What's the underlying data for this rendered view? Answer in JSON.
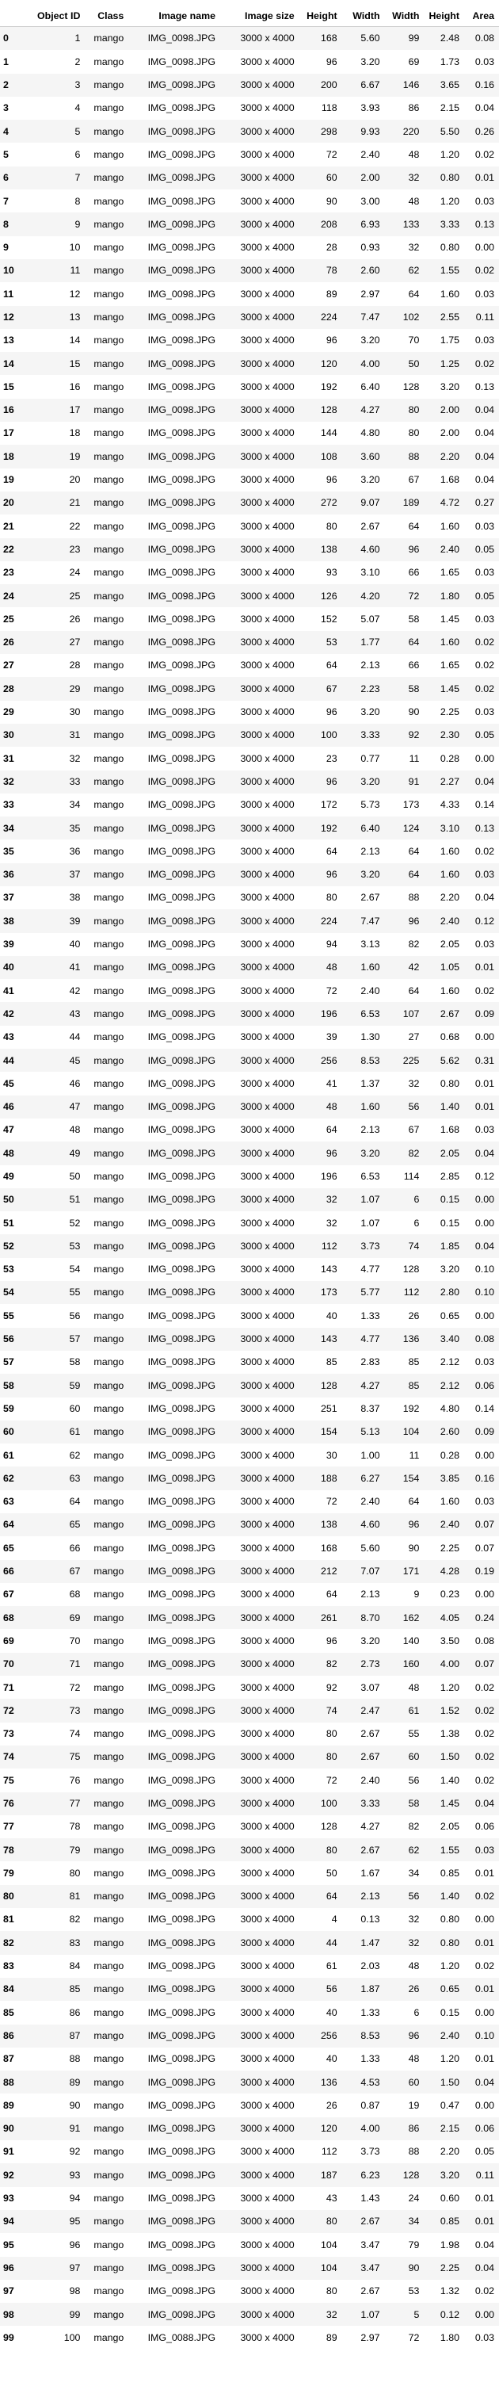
{
  "table": {
    "columns": [
      "",
      "Object ID",
      "Class",
      "Image name",
      "Image size",
      "Height",
      "Width",
      "Width",
      "Height",
      "Area"
    ],
    "rows": [
      [
        "0",
        "1",
        "mango",
        "IMG_0098.JPG",
        "3000 x 4000",
        "168",
        "5.60",
        "99",
        "2.48",
        "0.08"
      ],
      [
        "1",
        "2",
        "mango",
        "IMG_0098.JPG",
        "3000 x 4000",
        "96",
        "3.20",
        "69",
        "1.73",
        "0.03"
      ],
      [
        "2",
        "3",
        "mango",
        "IMG_0098.JPG",
        "3000 x 4000",
        "200",
        "6.67",
        "146",
        "3.65",
        "0.16"
      ],
      [
        "3",
        "4",
        "mango",
        "IMG_0098.JPG",
        "3000 x 4000",
        "118",
        "3.93",
        "86",
        "2.15",
        "0.04"
      ],
      [
        "4",
        "5",
        "mango",
        "IMG_0098.JPG",
        "3000 x 4000",
        "298",
        "9.93",
        "220",
        "5.50",
        "0.26"
      ],
      [
        "5",
        "6",
        "mango",
        "IMG_0098.JPG",
        "3000 x 4000",
        "72",
        "2.40",
        "48",
        "1.20",
        "0.02"
      ],
      [
        "6",
        "7",
        "mango",
        "IMG_0098.JPG",
        "3000 x 4000",
        "60",
        "2.00",
        "32",
        "0.80",
        "0.01"
      ],
      [
        "7",
        "8",
        "mango",
        "IMG_0098.JPG",
        "3000 x 4000",
        "90",
        "3.00",
        "48",
        "1.20",
        "0.03"
      ],
      [
        "8",
        "9",
        "mango",
        "IMG_0098.JPG",
        "3000 x 4000",
        "208",
        "6.93",
        "133",
        "3.33",
        "0.13"
      ],
      [
        "9",
        "10",
        "mango",
        "IMG_0098.JPG",
        "3000 x 4000",
        "28",
        "0.93",
        "32",
        "0.80",
        "0.00"
      ],
      [
        "10",
        "11",
        "mango",
        "IMG_0098.JPG",
        "3000 x 4000",
        "78",
        "2.60",
        "62",
        "1.55",
        "0.02"
      ],
      [
        "11",
        "12",
        "mango",
        "IMG_0098.JPG",
        "3000 x 4000",
        "89",
        "2.97",
        "64",
        "1.60",
        "0.03"
      ],
      [
        "12",
        "13",
        "mango",
        "IMG_0098.JPG",
        "3000 x 4000",
        "224",
        "7.47",
        "102",
        "2.55",
        "0.11"
      ],
      [
        "13",
        "14",
        "mango",
        "IMG_0098.JPG",
        "3000 x 4000",
        "96",
        "3.20",
        "70",
        "1.75",
        "0.03"
      ],
      [
        "14",
        "15",
        "mango",
        "IMG_0098.JPG",
        "3000 x 4000",
        "120",
        "4.00",
        "50",
        "1.25",
        "0.02"
      ],
      [
        "15",
        "16",
        "mango",
        "IMG_0098.JPG",
        "3000 x 4000",
        "192",
        "6.40",
        "128",
        "3.20",
        "0.13"
      ],
      [
        "16",
        "17",
        "mango",
        "IMG_0098.JPG",
        "3000 x 4000",
        "128",
        "4.27",
        "80",
        "2.00",
        "0.04"
      ],
      [
        "17",
        "18",
        "mango",
        "IMG_0098.JPG",
        "3000 x 4000",
        "144",
        "4.80",
        "80",
        "2.00",
        "0.04"
      ],
      [
        "18",
        "19",
        "mango",
        "IMG_0098.JPG",
        "3000 x 4000",
        "108",
        "3.60",
        "88",
        "2.20",
        "0.04"
      ],
      [
        "19",
        "20",
        "mango",
        "IMG_0098.JPG",
        "3000 x 4000",
        "96",
        "3.20",
        "67",
        "1.68",
        "0.04"
      ],
      [
        "20",
        "21",
        "mango",
        "IMG_0098.JPG",
        "3000 x 4000",
        "272",
        "9.07",
        "189",
        "4.72",
        "0.27"
      ],
      [
        "21",
        "22",
        "mango",
        "IMG_0098.JPG",
        "3000 x 4000",
        "80",
        "2.67",
        "64",
        "1.60",
        "0.03"
      ],
      [
        "22",
        "23",
        "mango",
        "IMG_0098.JPG",
        "3000 x 4000",
        "138",
        "4.60",
        "96",
        "2.40",
        "0.05"
      ],
      [
        "23",
        "24",
        "mango",
        "IMG_0098.JPG",
        "3000 x 4000",
        "93",
        "3.10",
        "66",
        "1.65",
        "0.03"
      ],
      [
        "24",
        "25",
        "mango",
        "IMG_0098.JPG",
        "3000 x 4000",
        "126",
        "4.20",
        "72",
        "1.80",
        "0.05"
      ],
      [
        "25",
        "26",
        "mango",
        "IMG_0098.JPG",
        "3000 x 4000",
        "152",
        "5.07",
        "58",
        "1.45",
        "0.03"
      ],
      [
        "26",
        "27",
        "mango",
        "IMG_0098.JPG",
        "3000 x 4000",
        "53",
        "1.77",
        "64",
        "1.60",
        "0.02"
      ],
      [
        "27",
        "28",
        "mango",
        "IMG_0098.JPG",
        "3000 x 4000",
        "64",
        "2.13",
        "66",
        "1.65",
        "0.02"
      ],
      [
        "28",
        "29",
        "mango",
        "IMG_0098.JPG",
        "3000 x 4000",
        "67",
        "2.23",
        "58",
        "1.45",
        "0.02"
      ],
      [
        "29",
        "30",
        "mango",
        "IMG_0098.JPG",
        "3000 x 4000",
        "96",
        "3.20",
        "90",
        "2.25",
        "0.03"
      ],
      [
        "30",
        "31",
        "mango",
        "IMG_0098.JPG",
        "3000 x 4000",
        "100",
        "3.33",
        "92",
        "2.30",
        "0.05"
      ],
      [
        "31",
        "32",
        "mango",
        "IMG_0098.JPG",
        "3000 x 4000",
        "23",
        "0.77",
        "11",
        "0.28",
        "0.00"
      ],
      [
        "32",
        "33",
        "mango",
        "IMG_0098.JPG",
        "3000 x 4000",
        "96",
        "3.20",
        "91",
        "2.27",
        "0.04"
      ],
      [
        "33",
        "34",
        "mango",
        "IMG_0098.JPG",
        "3000 x 4000",
        "172",
        "5.73",
        "173",
        "4.33",
        "0.14"
      ],
      [
        "34",
        "35",
        "mango",
        "IMG_0098.JPG",
        "3000 x 4000",
        "192",
        "6.40",
        "124",
        "3.10",
        "0.13"
      ],
      [
        "35",
        "36",
        "mango",
        "IMG_0098.JPG",
        "3000 x 4000",
        "64",
        "2.13",
        "64",
        "1.60",
        "0.02"
      ],
      [
        "36",
        "37",
        "mango",
        "IMG_0098.JPG",
        "3000 x 4000",
        "96",
        "3.20",
        "64",
        "1.60",
        "0.03"
      ],
      [
        "37",
        "38",
        "mango",
        "IMG_0098.JPG",
        "3000 x 4000",
        "80",
        "2.67",
        "88",
        "2.20",
        "0.04"
      ],
      [
        "38",
        "39",
        "mango",
        "IMG_0098.JPG",
        "3000 x 4000",
        "224",
        "7.47",
        "96",
        "2.40",
        "0.12"
      ],
      [
        "39",
        "40",
        "mango",
        "IMG_0098.JPG",
        "3000 x 4000",
        "94",
        "3.13",
        "82",
        "2.05",
        "0.03"
      ],
      [
        "40",
        "41",
        "mango",
        "IMG_0098.JPG",
        "3000 x 4000",
        "48",
        "1.60",
        "42",
        "1.05",
        "0.01"
      ],
      [
        "41",
        "42",
        "mango",
        "IMG_0098.JPG",
        "3000 x 4000",
        "72",
        "2.40",
        "64",
        "1.60",
        "0.02"
      ],
      [
        "42",
        "43",
        "mango",
        "IMG_0098.JPG",
        "3000 x 4000",
        "196",
        "6.53",
        "107",
        "2.67",
        "0.09"
      ],
      [
        "43",
        "44",
        "mango",
        "IMG_0098.JPG",
        "3000 x 4000",
        "39",
        "1.30",
        "27",
        "0.68",
        "0.00"
      ],
      [
        "44",
        "45",
        "mango",
        "IMG_0098.JPG",
        "3000 x 4000",
        "256",
        "8.53",
        "225",
        "5.62",
        "0.31"
      ],
      [
        "45",
        "46",
        "mango",
        "IMG_0098.JPG",
        "3000 x 4000",
        "41",
        "1.37",
        "32",
        "0.80",
        "0.01"
      ],
      [
        "46",
        "47",
        "mango",
        "IMG_0098.JPG",
        "3000 x 4000",
        "48",
        "1.60",
        "56",
        "1.40",
        "0.01"
      ],
      [
        "47",
        "48",
        "mango",
        "IMG_0098.JPG",
        "3000 x 4000",
        "64",
        "2.13",
        "67",
        "1.68",
        "0.03"
      ],
      [
        "48",
        "49",
        "mango",
        "IMG_0098.JPG",
        "3000 x 4000",
        "96",
        "3.20",
        "82",
        "2.05",
        "0.04"
      ],
      [
        "49",
        "50",
        "mango",
        "IMG_0098.JPG",
        "3000 x 4000",
        "196",
        "6.53",
        "114",
        "2.85",
        "0.12"
      ],
      [
        "50",
        "51",
        "mango",
        "IMG_0098.JPG",
        "3000 x 4000",
        "32",
        "1.07",
        "6",
        "0.15",
        "0.00"
      ],
      [
        "51",
        "52",
        "mango",
        "IMG_0098.JPG",
        "3000 x 4000",
        "32",
        "1.07",
        "6",
        "0.15",
        "0.00"
      ],
      [
        "52",
        "53",
        "mango",
        "IMG_0098.JPG",
        "3000 x 4000",
        "112",
        "3.73",
        "74",
        "1.85",
        "0.04"
      ],
      [
        "53",
        "54",
        "mango",
        "IMG_0098.JPG",
        "3000 x 4000",
        "143",
        "4.77",
        "128",
        "3.20",
        "0.10"
      ],
      [
        "54",
        "55",
        "mango",
        "IMG_0098.JPG",
        "3000 x 4000",
        "173",
        "5.77",
        "112",
        "2.80",
        "0.10"
      ],
      [
        "55",
        "56",
        "mango",
        "IMG_0098.JPG",
        "3000 x 4000",
        "40",
        "1.33",
        "26",
        "0.65",
        "0.00"
      ],
      [
        "56",
        "57",
        "mango",
        "IMG_0098.JPG",
        "3000 x 4000",
        "143",
        "4.77",
        "136",
        "3.40",
        "0.08"
      ],
      [
        "57",
        "58",
        "mango",
        "IMG_0098.JPG",
        "3000 x 4000",
        "85",
        "2.83",
        "85",
        "2.12",
        "0.03"
      ],
      [
        "58",
        "59",
        "mango",
        "IMG_0098.JPG",
        "3000 x 4000",
        "128",
        "4.27",
        "85",
        "2.12",
        "0.06"
      ],
      [
        "59",
        "60",
        "mango",
        "IMG_0098.JPG",
        "3000 x 4000",
        "251",
        "8.37",
        "192",
        "4.80",
        "0.14"
      ],
      [
        "60",
        "61",
        "mango",
        "IMG_0098.JPG",
        "3000 x 4000",
        "154",
        "5.13",
        "104",
        "2.60",
        "0.09"
      ],
      [
        "61",
        "62",
        "mango",
        "IMG_0098.JPG",
        "3000 x 4000",
        "30",
        "1.00",
        "11",
        "0.28",
        "0.00"
      ],
      [
        "62",
        "63",
        "mango",
        "IMG_0098.JPG",
        "3000 x 4000",
        "188",
        "6.27",
        "154",
        "3.85",
        "0.16"
      ],
      [
        "63",
        "64",
        "mango",
        "IMG_0098.JPG",
        "3000 x 4000",
        "72",
        "2.40",
        "64",
        "1.60",
        "0.03"
      ],
      [
        "64",
        "65",
        "mango",
        "IMG_0098.JPG",
        "3000 x 4000",
        "138",
        "4.60",
        "96",
        "2.40",
        "0.07"
      ],
      [
        "65",
        "66",
        "mango",
        "IMG_0098.JPG",
        "3000 x 4000",
        "168",
        "5.60",
        "90",
        "2.25",
        "0.07"
      ],
      [
        "66",
        "67",
        "mango",
        "IMG_0098.JPG",
        "3000 x 4000",
        "212",
        "7.07",
        "171",
        "4.28",
        "0.19"
      ],
      [
        "67",
        "68",
        "mango",
        "IMG_0098.JPG",
        "3000 x 4000",
        "64",
        "2.13",
        "9",
        "0.23",
        "0.00"
      ],
      [
        "68",
        "69",
        "mango",
        "IMG_0098.JPG",
        "3000 x 4000",
        "261",
        "8.70",
        "162",
        "4.05",
        "0.24"
      ],
      [
        "69",
        "70",
        "mango",
        "IMG_0098.JPG",
        "3000 x 4000",
        "96",
        "3.20",
        "140",
        "3.50",
        "0.08"
      ],
      [
        "70",
        "71",
        "mango",
        "IMG_0098.JPG",
        "3000 x 4000",
        "82",
        "2.73",
        "160",
        "4.00",
        "0.07"
      ],
      [
        "71",
        "72",
        "mango",
        "IMG_0098.JPG",
        "3000 x 4000",
        "92",
        "3.07",
        "48",
        "1.20",
        "0.02"
      ],
      [
        "72",
        "73",
        "mango",
        "IMG_0098.JPG",
        "3000 x 4000",
        "74",
        "2.47",
        "61",
        "1.52",
        "0.02"
      ],
      [
        "73",
        "74",
        "mango",
        "IMG_0098.JPG",
        "3000 x 4000",
        "80",
        "2.67",
        "55",
        "1.38",
        "0.02"
      ],
      [
        "74",
        "75",
        "mango",
        "IMG_0098.JPG",
        "3000 x 4000",
        "80",
        "2.67",
        "60",
        "1.50",
        "0.02"
      ],
      [
        "75",
        "76",
        "mango",
        "IMG_0098.JPG",
        "3000 x 4000",
        "72",
        "2.40",
        "56",
        "1.40",
        "0.02"
      ],
      [
        "76",
        "77",
        "mango",
        "IMG_0098.JPG",
        "3000 x 4000",
        "100",
        "3.33",
        "58",
        "1.45",
        "0.04"
      ],
      [
        "77",
        "78",
        "mango",
        "IMG_0098.JPG",
        "3000 x 4000",
        "128",
        "4.27",
        "82",
        "2.05",
        "0.06"
      ],
      [
        "78",
        "79",
        "mango",
        "IMG_0098.JPG",
        "3000 x 4000",
        "80",
        "2.67",
        "62",
        "1.55",
        "0.03"
      ],
      [
        "79",
        "80",
        "mango",
        "IMG_0098.JPG",
        "3000 x 4000",
        "50",
        "1.67",
        "34",
        "0.85",
        "0.01"
      ],
      [
        "80",
        "81",
        "mango",
        "IMG_0098.JPG",
        "3000 x 4000",
        "64",
        "2.13",
        "56",
        "1.40",
        "0.02"
      ],
      [
        "81",
        "82",
        "mango",
        "IMG_0098.JPG",
        "3000 x 4000",
        "4",
        "0.13",
        "32",
        "0.80",
        "0.00"
      ],
      [
        "82",
        "83",
        "mango",
        "IMG_0098.JPG",
        "3000 x 4000",
        "44",
        "1.47",
        "32",
        "0.80",
        "0.01"
      ],
      [
        "83",
        "84",
        "mango",
        "IMG_0098.JPG",
        "3000 x 4000",
        "61",
        "2.03",
        "48",
        "1.20",
        "0.02"
      ],
      [
        "84",
        "85",
        "mango",
        "IMG_0098.JPG",
        "3000 x 4000",
        "56",
        "1.87",
        "26",
        "0.65",
        "0.01"
      ],
      [
        "85",
        "86",
        "mango",
        "IMG_0098.JPG",
        "3000 x 4000",
        "40",
        "1.33",
        "6",
        "0.15",
        "0.00"
      ],
      [
        "86",
        "87",
        "mango",
        "IMG_0098.JPG",
        "3000 x 4000",
        "256",
        "8.53",
        "96",
        "2.40",
        "0.10"
      ],
      [
        "87",
        "88",
        "mango",
        "IMG_0098.JPG",
        "3000 x 4000",
        "40",
        "1.33",
        "48",
        "1.20",
        "0.01"
      ],
      [
        "88",
        "89",
        "mango",
        "IMG_0098.JPG",
        "3000 x 4000",
        "136",
        "4.53",
        "60",
        "1.50",
        "0.04"
      ],
      [
        "89",
        "90",
        "mango",
        "IMG_0098.JPG",
        "3000 x 4000",
        "26",
        "0.87",
        "19",
        "0.47",
        "0.00"
      ],
      [
        "90",
        "91",
        "mango",
        "IMG_0098.JPG",
        "3000 x 4000",
        "120",
        "4.00",
        "86",
        "2.15",
        "0.06"
      ],
      [
        "91",
        "92",
        "mango",
        "IMG_0098.JPG",
        "3000 x 4000",
        "112",
        "3.73",
        "88",
        "2.20",
        "0.05"
      ],
      [
        "92",
        "93",
        "mango",
        "IMG_0098.JPG",
        "3000 x 4000",
        "187",
        "6.23",
        "128",
        "3.20",
        "0.11"
      ],
      [
        "93",
        "94",
        "mango",
        "IMG_0098.JPG",
        "3000 x 4000",
        "43",
        "1.43",
        "24",
        "0.60",
        "0.01"
      ],
      [
        "94",
        "95",
        "mango",
        "IMG_0098.JPG",
        "3000 x 4000",
        "80",
        "2.67",
        "34",
        "0.85",
        "0.01"
      ],
      [
        "95",
        "96",
        "mango",
        "IMG_0098.JPG",
        "3000 x 4000",
        "104",
        "3.47",
        "79",
        "1.98",
        "0.04"
      ],
      [
        "96",
        "97",
        "mango",
        "IMG_0098.JPG",
        "3000 x 4000",
        "104",
        "3.47",
        "90",
        "2.25",
        "0.04"
      ],
      [
        "97",
        "98",
        "mango",
        "IMG_0098.JPG",
        "3000 x 4000",
        "80",
        "2.67",
        "53",
        "1.32",
        "0.02"
      ],
      [
        "98",
        "99",
        "mango",
        "IMG_0098.JPG",
        "3000 x 4000",
        "32",
        "1.07",
        "5",
        "0.12",
        "0.00"
      ],
      [
        "99",
        "100",
        "mango",
        "IMG_0088.JPG",
        "3000 x 4000",
        "89",
        "2.97",
        "72",
        "1.80",
        "0.03"
      ]
    ]
  }
}
